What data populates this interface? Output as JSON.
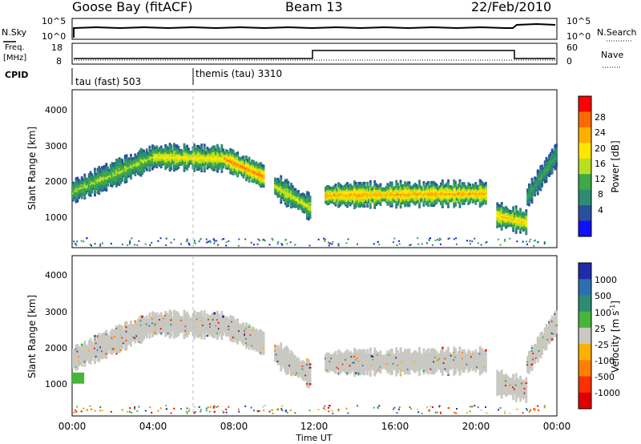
{
  "header": {
    "station": "Goose Bay (fitACF)",
    "beam": "Beam 13",
    "date": "22/Feb/2010"
  },
  "panels": {
    "nsky": {
      "left_label": "N.Sky",
      "left_ticks": [
        "10^5",
        "10^0"
      ],
      "right_label": "N.Search",
      "right_ticks": [
        "10^5",
        "10^0"
      ]
    },
    "freq": {
      "left_label_top": "Freq.",
      "left_label_bottom": "[MHz]",
      "left_ticks": [
        "18",
        "8"
      ],
      "right_label": "Nave",
      "right_ticks": [
        "60",
        "0"
      ]
    },
    "cpid": {
      "label": "CPID",
      "modes": [
        {
          "text": "tau (fast) 503",
          "start_hour": 0
        },
        {
          "text": "themis (tau) 3310",
          "start_hour": 6
        }
      ]
    }
  },
  "colorbars": {
    "power": {
      "label": "Power [dB]",
      "ticks": [
        "28",
        "24",
        "20",
        "16",
        "12",
        "8",
        "4"
      ],
      "colors": [
        "#ff0000",
        "#ff6a00",
        "#ffb000",
        "#ffe600",
        "#b8e020",
        "#3fa84a",
        "#2e8b74",
        "#2b4fa0",
        "#1010ff"
      ]
    },
    "velocity": {
      "label": "Velocity [m s",
      "label_sup": "-1",
      "label_end": "]",
      "ticks": [
        "1000",
        "500",
        "100",
        "25",
        "-25",
        "-100",
        "-500",
        "-1000"
      ],
      "colors": [
        "#1e2ea8",
        "#2c6fb0",
        "#2e8b74",
        "#46b53a",
        "#c9c9c2",
        "#ffb000",
        "#ff7f00",
        "#ff3000",
        "#e00000"
      ]
    }
  },
  "chart_data": [
    {
      "type": "heatmap",
      "title": "Power",
      "ylabel": "Slant Range [km]",
      "xlabel": "Time UT",
      "xlim": [
        "00:00",
        "24:00"
      ],
      "ylim": [
        180,
        4500
      ],
      "x_ticks": [
        "00:00",
        "04:00",
        "08:00",
        "12:00",
        "16:00",
        "20:00",
        "00:00"
      ],
      "y_ticks": [
        "1000",
        "2000",
        "3000",
        "4000"
      ],
      "echo_bands": [
        {
          "start_hour": 0.0,
          "end_hour": 4.0,
          "range_start_km": 1750,
          "range_end_km": 2700,
          "power_db": 14
        },
        {
          "start_hour": 4.0,
          "end_hour": 7.5,
          "range_start_km": 2700,
          "range_end_km": 2650,
          "power_db": 18
        },
        {
          "start_hour": 7.5,
          "end_hour": 9.5,
          "range_start_km": 2650,
          "range_end_km": 2150,
          "power_db": 24
        },
        {
          "start_hour": 10.0,
          "end_hour": 11.8,
          "range_start_km": 1900,
          "range_end_km": 1300,
          "power_db": 16
        },
        {
          "start_hour": 12.5,
          "end_hour": 20.5,
          "range_start_km": 1650,
          "range_end_km": 1700,
          "power_db": 22
        },
        {
          "start_hour": 21.0,
          "end_hour": 22.5,
          "range_start_km": 1100,
          "range_end_km": 900,
          "power_db": 20
        },
        {
          "start_hour": 22.5,
          "end_hour": 24.0,
          "range_start_km": 1600,
          "range_end_km": 2800,
          "power_db": 10
        }
      ]
    },
    {
      "type": "heatmap",
      "title": "Velocity",
      "ylabel": "Slant Range [km]",
      "xlabel": "Time UT",
      "xlim": [
        "00:00",
        "24:00"
      ],
      "ylim": [
        180,
        4500
      ],
      "x_ticks": [
        "00:00",
        "04:00",
        "08:00",
        "12:00",
        "16:00",
        "20:00",
        "00:00"
      ],
      "y_ticks": [
        "1000",
        "2000",
        "3000",
        "4000"
      ],
      "dominant_velocity_ms": "-25 to 25",
      "green_patch": {
        "start_hour": 0.0,
        "end_hour": 0.6,
        "range_start_km": 1050,
        "range_end_km": 1350,
        "velocity_ms": 100
      }
    }
  ]
}
